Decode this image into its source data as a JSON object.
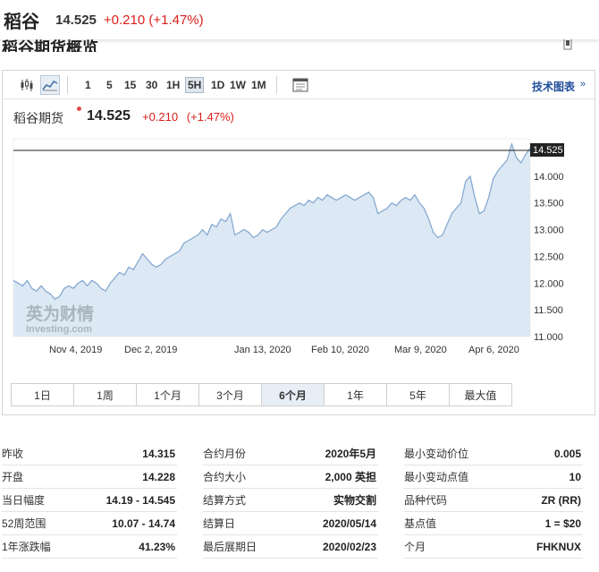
{
  "header": {
    "name": "稻谷",
    "price": "14.525",
    "change": "+0.210 (+1.47%)"
  },
  "section_title": "稻谷期货概览",
  "toolbar": {
    "timeframes": [
      "1",
      "5",
      "15",
      "30",
      "1H",
      "5H",
      "1D",
      "1W",
      "1M"
    ],
    "active_timeframe": "5H",
    "tech_chart_label": "技术图表"
  },
  "instrument": {
    "name": "稻谷期货",
    "price": "14.525",
    "change": "+0.210",
    "change_pct": "(+1.47%)"
  },
  "chart_data": {
    "type": "area",
    "y_ticks": [
      "14.000",
      "13.500",
      "13.000",
      "12.500",
      "12.000",
      "11.500",
      "11.000"
    ],
    "ylim": [
      11.0,
      14.7
    ],
    "x_tick_labels": [
      "Nov 4, 2019",
      "Dec 2, 2019",
      "Jan 13, 2020",
      "Feb 10, 2020",
      "Mar 9, 2020",
      "Apr 6, 2020"
    ],
    "last_price_label": "14.525",
    "watermark": {
      "brand": "英为财情",
      "sub": "Investing.com"
    },
    "values": [
      12.05,
      12.0,
      11.95,
      12.05,
      11.9,
      11.85,
      11.95,
      11.85,
      11.8,
      11.7,
      11.75,
      11.9,
      11.95,
      11.9,
      12.0,
      12.05,
      11.95,
      12.05,
      12.0,
      11.9,
      11.85,
      12.0,
      12.1,
      12.2,
      12.15,
      12.3,
      12.25,
      12.4,
      12.55,
      12.45,
      12.35,
      12.3,
      12.35,
      12.45,
      12.5,
      12.55,
      12.6,
      12.75,
      12.8,
      12.85,
      12.9,
      13.0,
      12.9,
      13.1,
      13.05,
      13.2,
      13.15,
      13.3,
      12.9,
      12.95,
      13.0,
      12.95,
      12.85,
      12.9,
      13.0,
      12.95,
      13.0,
      13.05,
      13.2,
      13.3,
      13.4,
      13.45,
      13.5,
      13.45,
      13.55,
      13.5,
      13.6,
      13.55,
      13.65,
      13.6,
      13.55,
      13.6,
      13.65,
      13.6,
      13.55,
      13.6,
      13.65,
      13.7,
      13.6,
      13.3,
      13.35,
      13.4,
      13.5,
      13.45,
      13.55,
      13.6,
      13.55,
      13.65,
      13.5,
      13.4,
      13.2,
      12.95,
      12.85,
      12.9,
      13.1,
      13.3,
      13.4,
      13.5,
      13.9,
      14.0,
      13.6,
      13.3,
      13.35,
      13.6,
      13.95,
      14.1,
      14.2,
      14.3,
      14.6,
      14.35,
      14.25,
      14.4,
      14.525
    ]
  },
  "range_buttons": [
    "1日",
    "1周",
    "1个月",
    "3个月",
    "6个月",
    "1年",
    "5年",
    "最大值"
  ],
  "active_range": "6个月",
  "stats": {
    "col1": [
      {
        "k": "昨收",
        "v": "14.315"
      },
      {
        "k": "开盘",
        "v": "14.228"
      },
      {
        "k": "当日幅度",
        "v": "14.19 - 14.545"
      },
      {
        "k": "52周范围",
        "v": "10.07 - 14.74"
      },
      {
        "k": "1年涨跌幅",
        "v": "41.23%"
      }
    ],
    "col2": [
      {
        "k": "合约月份",
        "v": "2020年5月"
      },
      {
        "k": "合约大小",
        "v": "2,000 英担"
      },
      {
        "k": "结算方式",
        "v": "实物交割"
      },
      {
        "k": "结算日",
        "v": "2020/05/14"
      },
      {
        "k": "最后展期日",
        "v": "2020/02/23"
      }
    ],
    "col3": [
      {
        "k": "最小变动价位",
        "v": "0.005"
      },
      {
        "k": "最小变动点值",
        "v": "10"
      },
      {
        "k": "品种代码",
        "v": "ZR (RR)"
      },
      {
        "k": "基点值",
        "v": "1 = $20"
      },
      {
        "k": "个月",
        "v": "FHKNUX"
      }
    ]
  },
  "colors": {
    "up": "#d91e18",
    "area_fill": "#dce8f3",
    "line": "#7fa6cf",
    "link": "#1f4e9b"
  }
}
